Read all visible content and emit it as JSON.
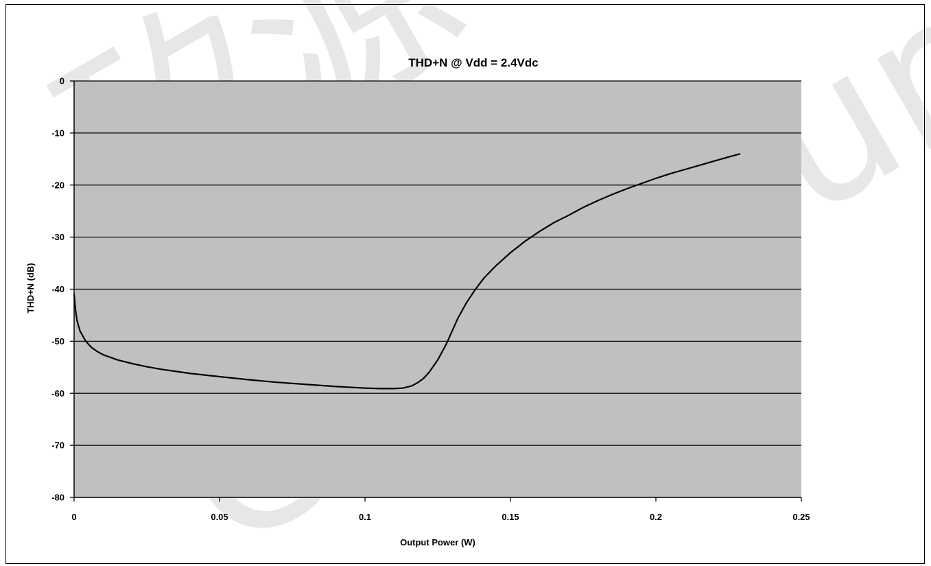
{
  "watermark": {
    "cjk": "矽源",
    "latin": "ChipSource"
  },
  "colors": {
    "plot_background": "#c0c0c0",
    "line": "#000000",
    "gridline": "#000000",
    "page": "#ffffff"
  },
  "chart_data": {
    "type": "line",
    "title": "THD+N @ Vdd = 2.4Vdc",
    "xlabel": "Output Power (W)",
    "ylabel": "THD+N (dB)",
    "xlim": [
      0,
      0.25
    ],
    "ylim": [
      -80,
      0
    ],
    "x_ticks": [
      "0",
      "0.05",
      "0.1",
      "0.15",
      "0.2",
      "0.25"
    ],
    "y_ticks": [
      "0",
      "-10",
      "-20",
      "-30",
      "-40",
      "-50",
      "-60",
      "-70",
      "-80"
    ],
    "grid": "horizontal",
    "legend": "none",
    "series": [
      {
        "x": [
          0,
          0.0005,
          0.001,
          0.002,
          0.004,
          0.006,
          0.008,
          0.01,
          0.015,
          0.02,
          0.025,
          0.03,
          0.04,
          0.05,
          0.06,
          0.07,
          0.08,
          0.09,
          0.1,
          0.105,
          0.11,
          0.113,
          0.116,
          0.118,
          0.12,
          0.122,
          0.125,
          0.128,
          0.13,
          0.132,
          0.135,
          0.138,
          0.141,
          0.145,
          0.15,
          0.155,
          0.16,
          0.165,
          0.17,
          0.175,
          0.18,
          0.185,
          0.19,
          0.195,
          0.2,
          0.205,
          0.21,
          0.215,
          0.22,
          0.225,
          0.229
        ],
        "y": [
          -41,
          -44,
          -46,
          -48,
          -50,
          -51.2,
          -52,
          -52.6,
          -53.6,
          -54.3,
          -54.9,
          -55.4,
          -56.2,
          -56.8,
          -57.4,
          -57.9,
          -58.3,
          -58.7,
          -59,
          -59.1,
          -59.1,
          -59,
          -58.6,
          -58,
          -57.2,
          -56,
          -53.6,
          -50.5,
          -48,
          -45.5,
          -42.5,
          -40,
          -37.8,
          -35.5,
          -33,
          -30.8,
          -28.9,
          -27.2,
          -25.8,
          -24.3,
          -23,
          -21.8,
          -20.7,
          -19.7,
          -18.7,
          -17.8,
          -17,
          -16.2,
          -15.4,
          -14.6,
          -14
        ]
      }
    ]
  }
}
